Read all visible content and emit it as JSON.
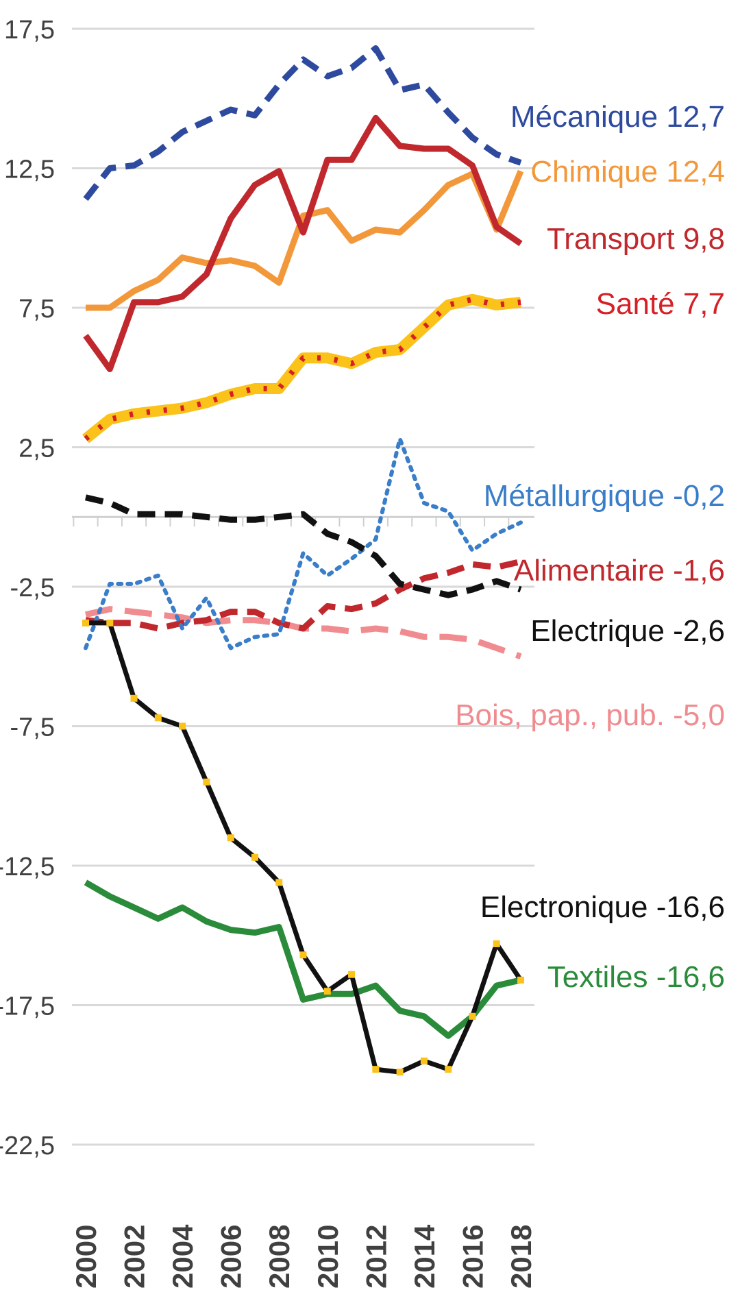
{
  "chart_data": {
    "type": "line",
    "title": "",
    "xlabel": "",
    "ylabel": "",
    "x": [
      2000,
      2001,
      2002,
      2003,
      2004,
      2005,
      2006,
      2007,
      2008,
      2009,
      2010,
      2011,
      2012,
      2013,
      2014,
      2015,
      2016,
      2017,
      2018
    ],
    "x_tick_labels": [
      "2000",
      "2002",
      "2004",
      "2006",
      "2008",
      "2010",
      "2012",
      "2014",
      "2016",
      "2018"
    ],
    "y_tick_labels": [
      "17,5",
      "12,5",
      "7,5",
      "2,5",
      "-2,5",
      "-7,5",
      "-12,5",
      "-17,5",
      "-22,5"
    ],
    "y_ticks": [
      17.5,
      12.5,
      7.5,
      2.5,
      -2.5,
      -7.5,
      -12.5,
      -17.5,
      -22.5
    ],
    "ylim": [
      -22.5,
      17.5
    ],
    "grid": true,
    "legend": "right-end labels",
    "series": [
      {
        "name": "Mécanique",
        "label": "Mécanique 12,7",
        "color": "#2e4a9e",
        "style": "dashed",
        "values": [
          11.4,
          12.5,
          12.6,
          13.1,
          13.8,
          14.2,
          14.6,
          14.4,
          15.5,
          16.4,
          15.8,
          16.1,
          16.8,
          15.3,
          15.5,
          14.5,
          13.6,
          13.0,
          12.7
        ]
      },
      {
        "name": "Chimique",
        "label": "Chimique 12,4",
        "color": "#f2983a",
        "style": "solid",
        "values": [
          7.5,
          7.5,
          8.1,
          8.5,
          9.3,
          9.1,
          9.2,
          9.0,
          8.4,
          10.8,
          11.0,
          9.9,
          10.3,
          10.2,
          11.0,
          11.9,
          12.3,
          10.3,
          12.4
        ]
      },
      {
        "name": "Transport",
        "label": "Transport 9,8",
        "color": "#c0282d",
        "style": "solid",
        "values": [
          6.5,
          5.3,
          7.7,
          7.7,
          7.9,
          8.7,
          10.7,
          11.9,
          12.4,
          10.2,
          12.8,
          12.8,
          14.3,
          13.3,
          13.2,
          13.2,
          12.6,
          10.4,
          9.8
        ]
      },
      {
        "name": "Santé",
        "label": "Santé 7,7",
        "color": "#fbc21a",
        "dot_color": "#d62026",
        "style": "thick-dotted",
        "values": [
          2.8,
          3.5,
          3.7,
          3.8,
          3.9,
          4.1,
          4.4,
          4.6,
          4.6,
          5.7,
          5.7,
          5.5,
          5.9,
          6.0,
          6.8,
          7.6,
          7.8,
          7.6,
          7.7
        ]
      },
      {
        "name": "Métallurgique",
        "label": "Métallurgique -0,2",
        "color": "#3a7dc8",
        "style": "dotted",
        "values": [
          -4.7,
          -2.4,
          -2.4,
          -2.1,
          -4.0,
          -2.9,
          -4.7,
          -4.3,
          -4.2,
          -1.3,
          -2.1,
          -1.5,
          -0.8,
          2.8,
          0.5,
          0.2,
          -1.2,
          -0.6,
          -0.2
        ]
      },
      {
        "name": "Alimentaire",
        "label": "Alimentaire -1,6",
        "color": "#c0282d",
        "style": "dashed",
        "values": [
          -3.7,
          -3.8,
          -3.8,
          -4.0,
          -3.8,
          -3.7,
          -3.4,
          -3.4,
          -3.8,
          -4.0,
          -3.2,
          -3.3,
          -3.1,
          -2.6,
          -2.2,
          -2.0,
          -1.7,
          -1.8,
          -1.6
        ]
      },
      {
        "name": "Electrique",
        "label": "Electrique -2,6",
        "color": "#111111",
        "style": "dashed",
        "values": [
          0.7,
          0.5,
          0.1,
          0.1,
          0.1,
          0.0,
          -0.1,
          -0.1,
          0.0,
          0.1,
          -0.6,
          -0.9,
          -1.4,
          -2.4,
          -2.6,
          -2.8,
          -2.6,
          -2.3,
          -2.6
        ]
      },
      {
        "name": "Bois, pap., pub.",
        "label": "Bois, pap., pub. -5,0",
        "color": "#f08c90",
        "style": "long-dashed",
        "values": [
          -3.5,
          -3.3,
          -3.4,
          -3.5,
          -3.6,
          -3.8,
          -3.7,
          -3.7,
          -3.8,
          -4.0,
          -4.0,
          -4.1,
          -4.0,
          -4.1,
          -4.3,
          -4.3,
          -4.4,
          -4.7,
          -5.0
        ]
      },
      {
        "name": "Electronique",
        "label": "Electronique -16,6",
        "color": "#111111",
        "dot_color": "#fbc21a",
        "style": "solid-marked",
        "values": [
          -3.8,
          -3.8,
          -6.5,
          -7.2,
          -7.5,
          -9.5,
          -11.5,
          -12.2,
          -13.1,
          -15.7,
          -17.0,
          -16.4,
          -19.8,
          -19.9,
          -19.5,
          -19.8,
          -17.9,
          -15.3,
          -16.6
        ]
      },
      {
        "name": "Textiles",
        "label": "Textiles -16,6",
        "color": "#2a8c3a",
        "style": "solid",
        "values": [
          -13.1,
          -13.6,
          -14.0,
          -14.4,
          -14.0,
          -14.5,
          -14.8,
          -14.9,
          -14.7,
          -17.3,
          -17.1,
          -17.1,
          -16.8,
          -17.7,
          -17.9,
          -18.6,
          -17.9,
          -16.8,
          -16.6
        ]
      }
    ]
  }
}
